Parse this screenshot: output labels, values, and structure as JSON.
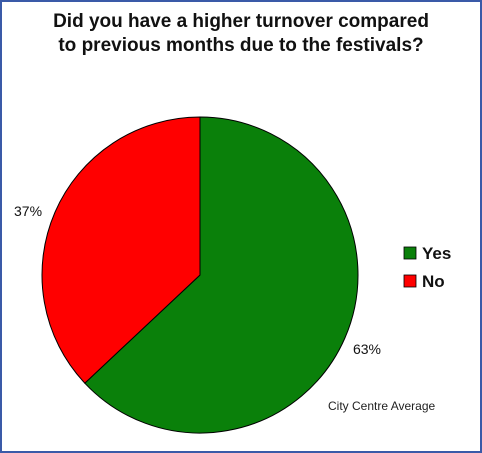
{
  "chart_data": {
    "type": "pie",
    "title_lines": [
      "Did you have a higher turnover compared",
      "to previous months due to the festivals?"
    ],
    "categories": [
      "Yes",
      "No"
    ],
    "values": [
      63,
      37
    ],
    "value_labels": [
      "63%",
      "37%"
    ],
    "colors": [
      "#0a800a",
      "#ff0000"
    ],
    "legend": {
      "placement": "right",
      "entries": [
        "Yes",
        "No"
      ]
    },
    "note": "City Centre Average"
  }
}
